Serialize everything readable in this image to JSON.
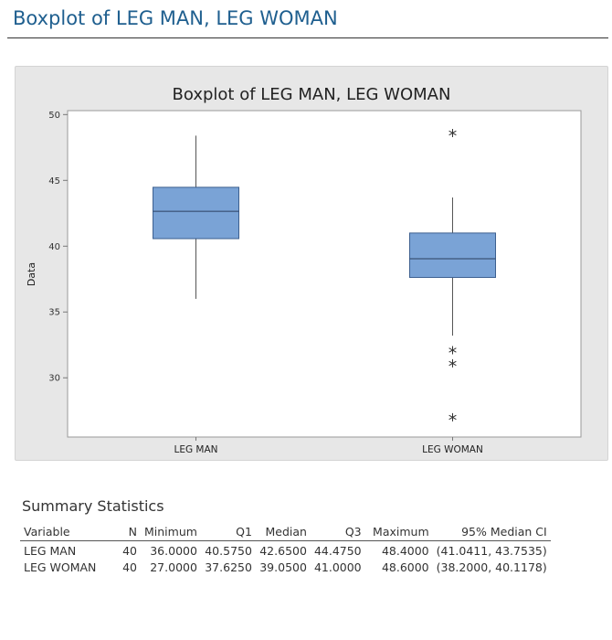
{
  "page": {
    "title": "Boxplot of LEG MAN, LEG WOMAN"
  },
  "chart_data": {
    "type": "boxplot",
    "title": "Boxplot of LEG MAN, LEG WOMAN",
    "ylabel": "Data",
    "xlabel": "",
    "ylim": [
      25.5,
      50.3
    ],
    "yticks": [
      30,
      35,
      40,
      45,
      50
    ],
    "grid": false,
    "box_color": "#7aa3d6",
    "series": [
      {
        "category": "LEG MAN",
        "q1": 40.575,
        "median": 42.65,
        "q3": 44.475,
        "whisker_low": 36.0,
        "whisker_high": 48.4,
        "outliers": []
      },
      {
        "category": "LEG WOMAN",
        "q1": 37.625,
        "median": 39.05,
        "q3": 41.0,
        "whisker_low": 33.2,
        "whisker_high": 43.7,
        "outliers": [
          48.6,
          32.1,
          31.1,
          27.0
        ]
      }
    ]
  },
  "summary": {
    "title": "Summary Statistics",
    "columns": [
      "Variable",
      "N",
      "Minimum",
      "Q1",
      "Median",
      "Q3",
      "Maximum",
      "95% Median CI"
    ],
    "rows": [
      [
        "LEG MAN",
        "40",
        "36.0000",
        "40.5750",
        "42.6500",
        "44.4750",
        "48.4000",
        "(41.0411, 43.7535)"
      ],
      [
        "LEG WOMAN",
        "40",
        "27.0000",
        "37.6250",
        "39.0500",
        "41.0000",
        "48.6000",
        "(38.2000, 40.1178)"
      ]
    ]
  }
}
